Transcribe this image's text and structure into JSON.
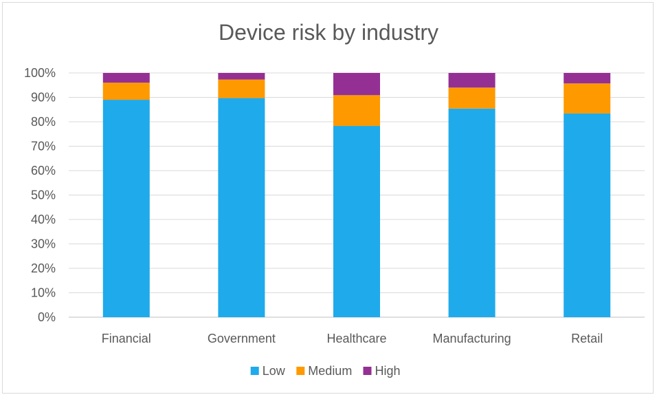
{
  "chart_data": {
    "type": "bar",
    "stacked": true,
    "percent": true,
    "title": "Device risk by industry",
    "categories": [
      "Financial",
      "Government",
      "Healthcare",
      "Manufacturing",
      "Retail"
    ],
    "series": [
      {
        "name": "Low",
        "color": "#1faaeb",
        "values": [
          89.0,
          89.7,
          78.3,
          85.4,
          83.4
        ]
      },
      {
        "name": "Medium",
        "color": "#ff9900",
        "values": [
          7.0,
          7.6,
          12.6,
          8.6,
          12.3
        ]
      },
      {
        "name": "High",
        "color": "#943093",
        "values": [
          4.0,
          2.7,
          9.1,
          6.0,
          4.3
        ]
      }
    ],
    "yticks": [
      "0%",
      "10%",
      "20%",
      "30%",
      "40%",
      "50%",
      "60%",
      "70%",
      "80%",
      "90%",
      "100%"
    ],
    "ylim": [
      0,
      100
    ],
    "grid": true,
    "legend_position": "bottom"
  }
}
